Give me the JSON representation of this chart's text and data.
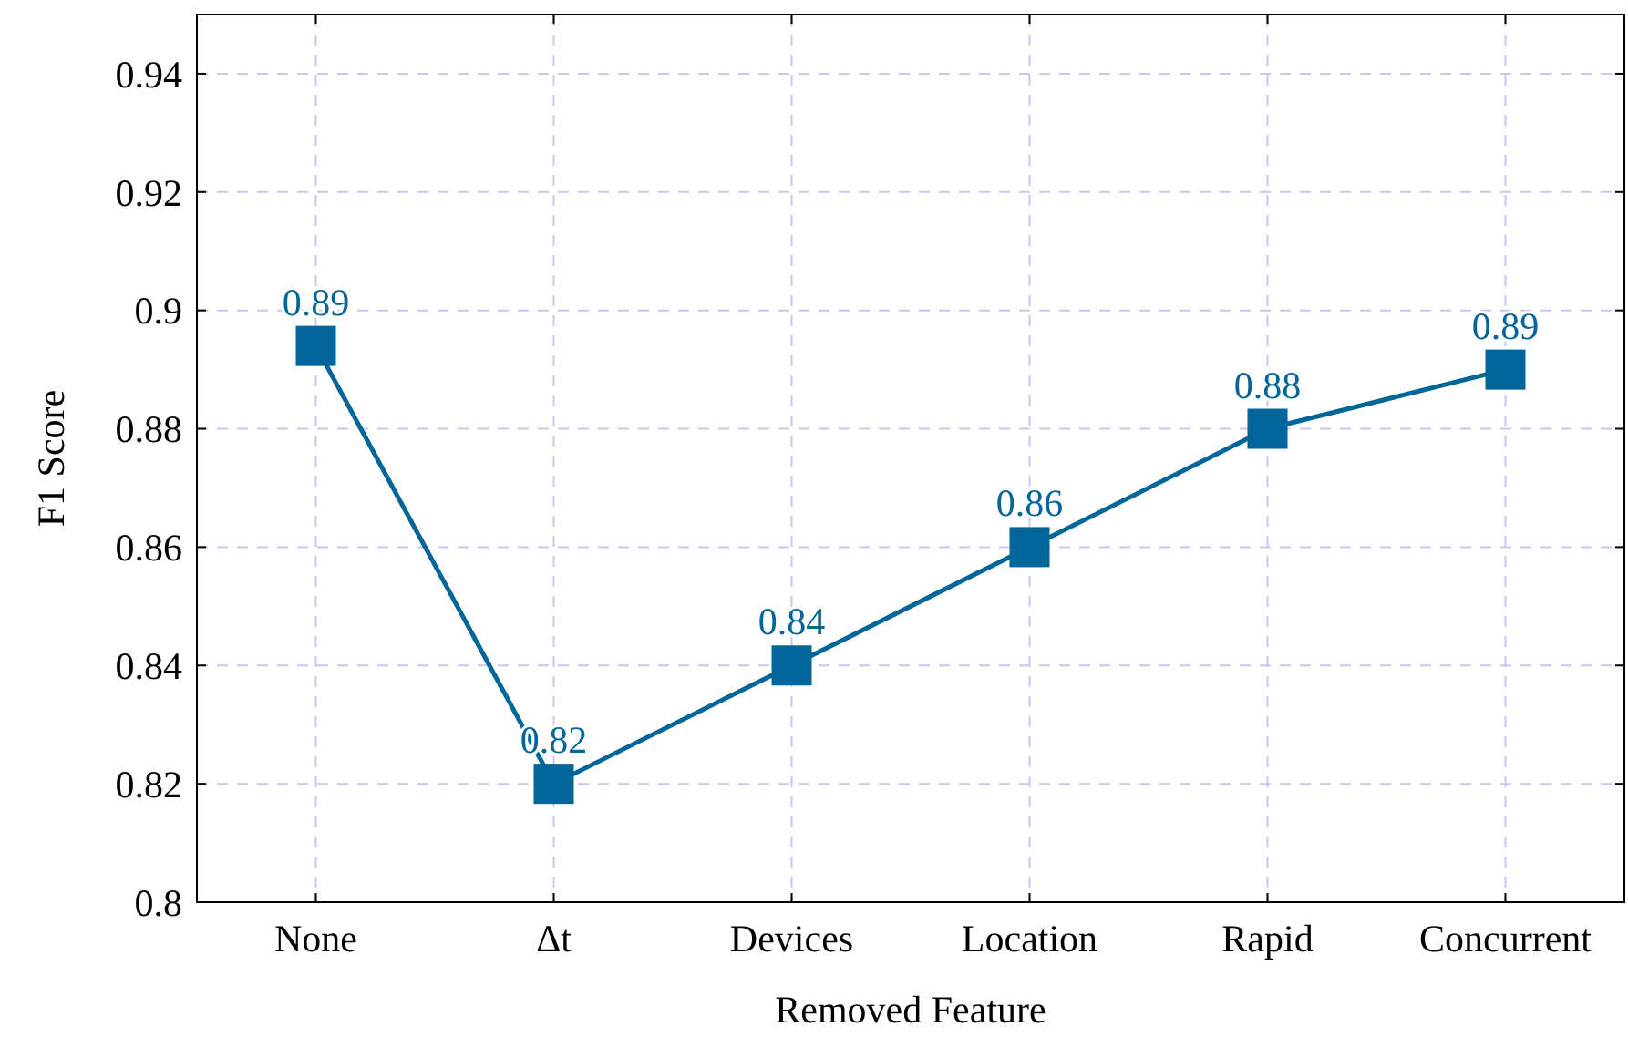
{
  "chart_data": {
    "type": "line",
    "xlabel": "Removed Feature",
    "ylabel": "F1 Score",
    "categories": [
      "None",
      "Δt",
      "Devices",
      "Location",
      "Rapid",
      "Concurrent"
    ],
    "series": [
      {
        "color": "#006699",
        "values": [
          0.894,
          0.82,
          0.84,
          0.86,
          0.88,
          0.89
        ],
        "value_labels": [
          "0.89",
          "0.82",
          "0.84",
          "0.86",
          "0.88",
          "0.89"
        ]
      }
    ],
    "ylim": [
      0.8,
      0.95
    ],
    "yticks": [
      0.8,
      0.82,
      0.84,
      0.86,
      0.88,
      0.9,
      0.92,
      0.94
    ],
    "grid": true,
    "marker": "square",
    "line_style": "solid"
  }
}
